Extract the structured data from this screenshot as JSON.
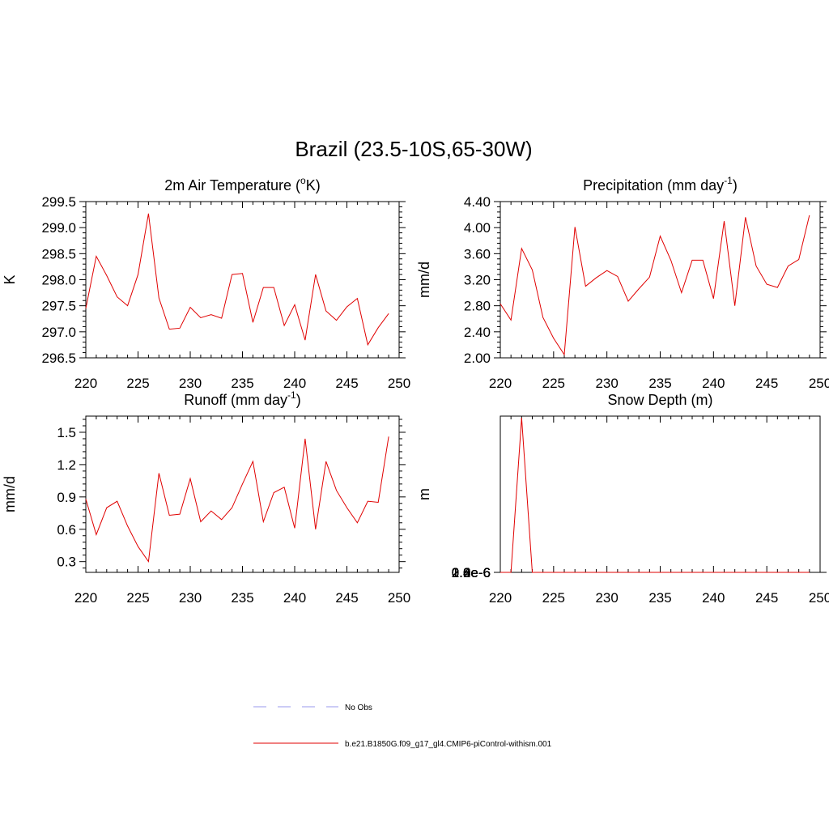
{
  "title": "Brazil (23.5-10S,65-30W)",
  "colors": {
    "model": "#e00000",
    "obs": "#9999ee"
  },
  "legend": {
    "entries": [
      {
        "label": "No Obs",
        "style": "dashed",
        "color": "#9999ee"
      },
      {
        "label": "b.e21.B1850G.f09_g17_gl4.CMIP6-piControl-withism.001",
        "style": "solid",
        "color": "#e00000"
      }
    ]
  },
  "chart_data": [
    {
      "type": "line",
      "title_main": "2m Air Temperature (",
      "title_sup": "o",
      "title_end": "K)",
      "ylabel": "K",
      "xlim": [
        220,
        250
      ],
      "ylim": [
        296.5,
        299.5
      ],
      "xticks": [
        220,
        225,
        230,
        235,
        240,
        245,
        250
      ],
      "yticks": [
        "296.5",
        "297.0",
        "297.5",
        "298.0",
        "298.5",
        "299.0",
        "299.5"
      ],
      "series": [
        {
          "x": [
            220,
            221,
            222,
            223,
            224,
            225,
            226,
            227,
            228,
            229,
            230,
            231,
            232,
            233,
            234,
            235,
            236,
            237,
            238,
            239,
            240,
            241,
            242,
            243,
            244,
            245,
            246,
            247,
            248,
            249
          ],
          "values": [
            297.45,
            298.45,
            298.08,
            297.67,
            297.5,
            298.1,
            299.27,
            297.65,
            297.05,
            297.07,
            297.47,
            297.27,
            297.33,
            297.26,
            298.1,
            298.12,
            297.18,
            297.85,
            297.85,
            297.12,
            297.52,
            296.84,
            298.1,
            297.4,
            297.22,
            297.48,
            297.64,
            296.75,
            297.08,
            297.35
          ]
        }
      ]
    },
    {
      "type": "line",
      "title_main": "Precipitation (mm day",
      "title_sup": "-1",
      "title_end": ")",
      "ylabel": "mm/d",
      "xlim": [
        220,
        250
      ],
      "ylim": [
        2.0,
        4.4
      ],
      "xticks": [
        220,
        225,
        230,
        235,
        240,
        245,
        250
      ],
      "yticks": [
        "2.00",
        "2.40",
        "2.80",
        "3.20",
        "3.60",
        "4.00",
        "4.40"
      ],
      "series": [
        {
          "x": [
            220,
            221,
            222,
            223,
            224,
            225,
            226,
            227,
            228,
            229,
            230,
            231,
            232,
            233,
            234,
            235,
            236,
            237,
            238,
            239,
            240,
            241,
            242,
            243,
            244,
            245,
            246,
            247,
            248,
            249
          ],
          "values": [
            2.83,
            2.58,
            3.68,
            3.35,
            2.62,
            2.3,
            2.05,
            4.01,
            3.1,
            3.23,
            3.34,
            3.25,
            2.87,
            3.06,
            3.24,
            3.87,
            3.5,
            3.0,
            3.5,
            3.5,
            2.91,
            4.1,
            2.8,
            4.16,
            3.41,
            3.13,
            3.08,
            3.41,
            3.51,
            4.19
          ]
        }
      ]
    },
    {
      "type": "line",
      "title_main": "Runoff (mm day",
      "title_sup": "-1",
      "title_end": ")",
      "ylabel": "mm/d",
      "xlim": [
        220,
        250
      ],
      "ylim": [
        0.2,
        1.65
      ],
      "xticks": [
        220,
        225,
        230,
        235,
        240,
        245,
        250
      ],
      "yticks": [
        "0.3",
        "0.6",
        "0.9",
        "1.2",
        "1.5"
      ],
      "series": [
        {
          "x": [
            220,
            221,
            222,
            223,
            224,
            225,
            226,
            227,
            228,
            229,
            230,
            231,
            232,
            233,
            234,
            235,
            236,
            237,
            238,
            239,
            240,
            241,
            242,
            243,
            244,
            245,
            246,
            247,
            248,
            249
          ],
          "values": [
            0.88,
            0.55,
            0.8,
            0.86,
            0.63,
            0.44,
            0.3,
            1.12,
            0.73,
            0.74,
            1.07,
            0.67,
            0.77,
            0.69,
            0.8,
            1.02,
            1.23,
            0.67,
            0.94,
            0.99,
            0.61,
            1.44,
            0.6,
            1.23,
            0.96,
            0.8,
            0.66,
            0.86,
            0.85,
            1.46
          ]
        }
      ]
    },
    {
      "type": "line",
      "title_main": "Snow Depth (m)",
      "title_sup": "",
      "title_end": "",
      "ylabel": "m",
      "xlim": [
        220,
        250
      ],
      "ylim": [
        0,
        2.8e-06
      ],
      "xticks": [
        220,
        225,
        230,
        235,
        240,
        245,
        250
      ],
      "yticks": [
        "0.0e-6",
        "0.4e-6",
        "0.8e-6",
        "1.2e-6",
        "1.6e-6",
        "2.0e-6",
        "2.4e-6",
        "2.8e-6"
      ],
      "series": [
        {
          "x": [
            220,
            221,
            222,
            223,
            224,
            225,
            226,
            227,
            228,
            229,
            230,
            231,
            232,
            233,
            234,
            235,
            236,
            237,
            238,
            239,
            240,
            241,
            242,
            243,
            244,
            245,
            246,
            247,
            248,
            249
          ],
          "values": [
            0,
            0,
            2.77e-06,
            0,
            0,
            0,
            0,
            0,
            0,
            0,
            0,
            0,
            0,
            0,
            0,
            0,
            0,
            0,
            0,
            0,
            0,
            0,
            0,
            0,
            0,
            0,
            0,
            0,
            0,
            0
          ]
        }
      ]
    }
  ]
}
